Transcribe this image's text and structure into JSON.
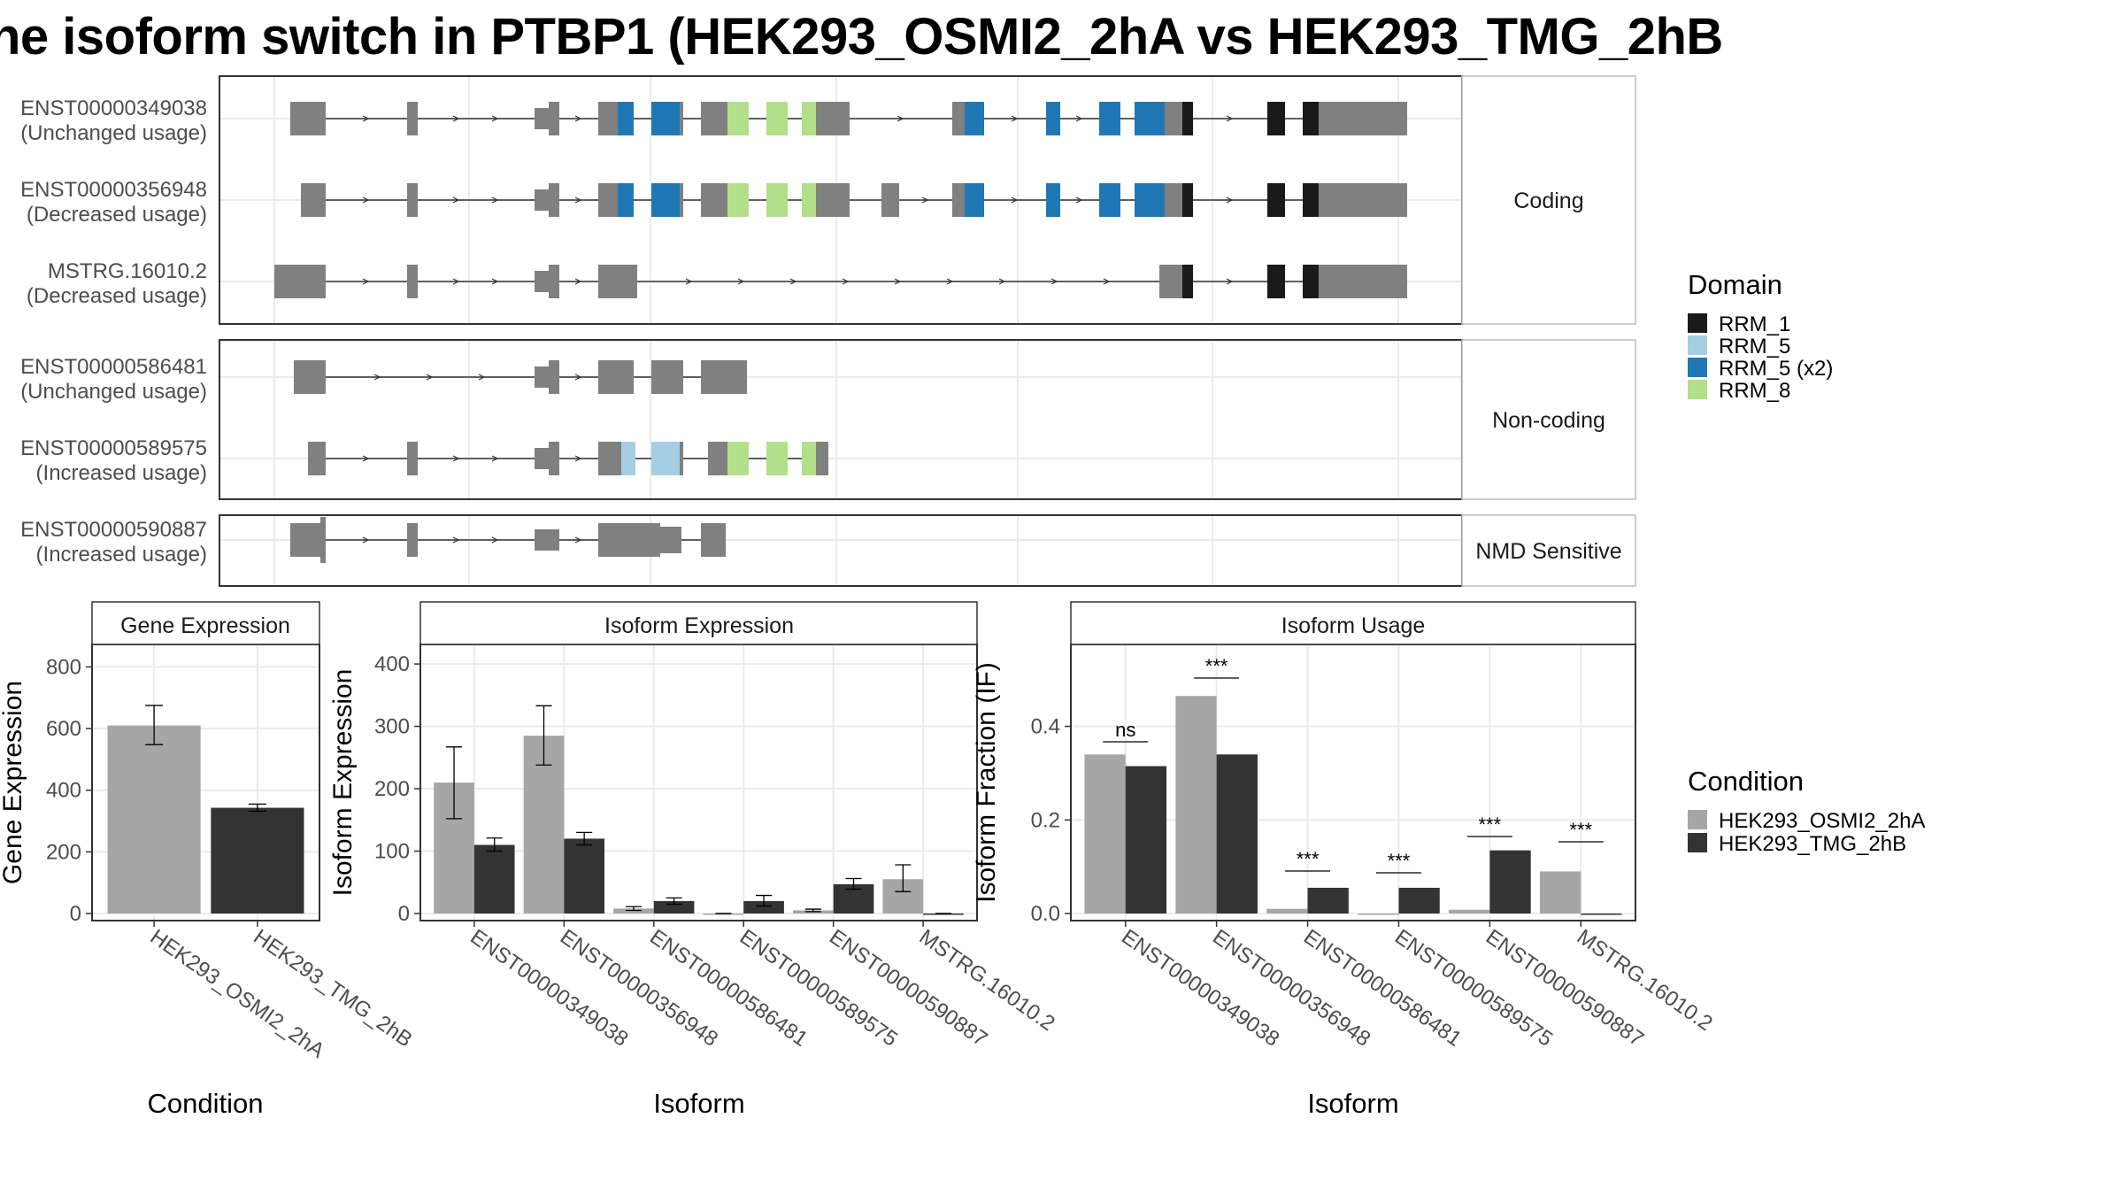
{
  "title": "he isoform switch in PTBP1 (HEK293_OSMI2_2hA vs HEK293_TMG_2hB",
  "colors": {
    "RRM_1": "#1a1a1a",
    "RRM_5": "#a6cee3",
    "RRM_5 (x2)": "#1f78b4",
    "RRM_8": "#b2df8a",
    "exon": "#808080",
    "cond1": "#a6a6a6",
    "cond2": "#333333",
    "panel_strip": "#ffffff"
  },
  "structure": {
    "groups": [
      {
        "label": "Coding",
        "isoforms": [
          {
            "id": "ENST00000349038",
            "status": "(Unchanged usage)"
          },
          {
            "id": "ENST00000356948",
            "status": "(Decreased usage)"
          },
          {
            "id": "MSTRG.16010.2",
            "status": "(Decreased usage)"
          }
        ]
      },
      {
        "label": "Non-coding",
        "isoforms": [
          {
            "id": "ENST00000586481",
            "status": "(Unchanged usage)"
          },
          {
            "id": "ENST00000589575",
            "status": "(Increased usage)"
          }
        ]
      },
      {
        "label": "NMD Sensitive",
        "isoforms": [
          {
            "id": "ENST00000590887",
            "status": "(Increased usage)"
          }
        ]
      }
    ],
    "domain_legend": {
      "title": "Domain",
      "items": [
        "RRM_1",
        "RRM_5",
        "RRM_5 (x2)",
        "RRM_8"
      ]
    }
  },
  "chart_data": [
    {
      "type": "bar",
      "panel_title": "Gene Expression",
      "xlabel": "Condition",
      "ylabel": "Gene Expression",
      "ylim": [
        0,
        850
      ],
      "yticks": [
        0,
        200,
        400,
        600,
        800
      ],
      "categories": [
        "HEK293_OSMI2_2hA",
        "HEK293_TMG_2hB"
      ],
      "values": [
        610,
        343
      ],
      "errors": [
        [
          548,
          675
        ],
        [
          332,
          355
        ]
      ]
    },
    {
      "type": "bar",
      "panel_title": "Isoform Expression",
      "xlabel": "Isoform",
      "ylabel": "Isoform Expression",
      "ylim": [
        0,
        420
      ],
      "yticks": [
        0,
        100,
        200,
        300,
        400
      ],
      "categories": [
        "ENST00000349038",
        "ENST00000356948",
        "ENST00000586481",
        "ENST00000589575",
        "ENST00000590887",
        "MSTRG.16010.2"
      ],
      "series": [
        {
          "name": "HEK293_OSMI2_2hA",
          "values": [
            210,
            285,
            8,
            0,
            5,
            55
          ],
          "errors": [
            [
              152,
              267
            ],
            [
              238,
              333
            ],
            [
              5,
              11
            ],
            [
              0,
              0
            ],
            [
              3,
              7
            ],
            [
              35,
              78
            ]
          ]
        },
        {
          "name": "HEK293_TMG_2hB",
          "values": [
            110,
            120,
            20,
            20,
            47,
            0
          ],
          "errors": [
            [
              100,
              121
            ],
            [
              110,
              130
            ],
            [
              15,
              25
            ],
            [
              12,
              29
            ],
            [
              39,
              56
            ],
            [
              0,
              0
            ]
          ]
        }
      ]
    },
    {
      "type": "bar",
      "panel_title": "Isoform Usage",
      "xlabel": "Isoform",
      "ylabel": "Isoform Fraction (IF)",
      "ylim": [
        0,
        0.56
      ],
      "yticks": [
        0.0,
        0.2,
        0.4
      ],
      "ytick_labels": [
        "0.0",
        "0.2",
        "0.4"
      ],
      "categories": [
        "ENST00000349038",
        "ENST00000356948",
        "ENST00000586481",
        "ENST00000589575",
        "ENST00000590887",
        "MSTRG.16010.2"
      ],
      "series": [
        {
          "name": "HEK293_OSMI2_2hA",
          "values": [
            0.34,
            0.465,
            0.01,
            0.0,
            0.008,
            0.09
          ]
        },
        {
          "name": "HEK293_TMG_2hB",
          "values": [
            0.315,
            0.34,
            0.055,
            0.055,
            0.135,
            0.0
          ]
        }
      ],
      "significance": [
        "ns",
        "***",
        "***",
        "***",
        "***",
        "***"
      ]
    }
  ],
  "condition_legend": {
    "title": "Condition",
    "items": [
      "HEK293_OSMI2_2hA",
      "HEK293_TMG_2hB"
    ]
  }
}
